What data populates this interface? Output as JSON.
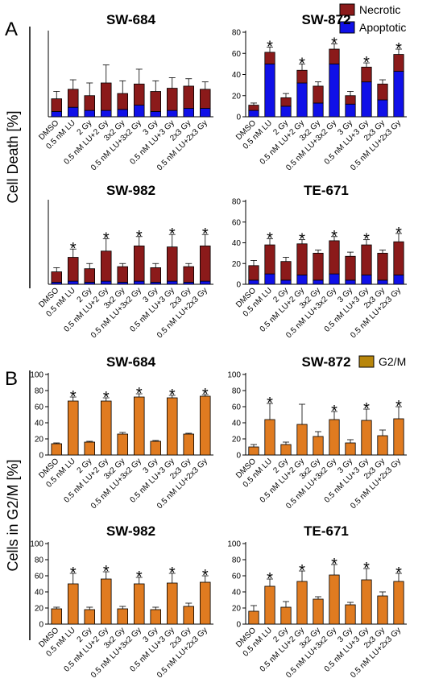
{
  "panels": [
    {
      "letter": "A",
      "ylabel": "Cell Death [%]",
      "legend": [
        {
          "label": "Necrotic",
          "color": "#8b1a1a"
        },
        {
          "label": "Apoptotic",
          "color": "#1010e8"
        }
      ]
    },
    {
      "letter": "B",
      "ylabel": "Cells in G2/M [%]",
      "legend": [
        {
          "label": "G2/M",
          "color": "#e07b20"
        }
      ]
    }
  ],
  "chart_data": [
    {
      "type": "bar",
      "stacked": true,
      "panel": "A",
      "title": "SW-684",
      "categories": [
        "DMSO",
        "0.5 nM LU",
        "2 Gy",
        "0.5 nM LU+2 Gy",
        "3x2 Gy",
        "0.5 nM LU+3x2 Gy",
        "3 Gy",
        "0.5 nM LU+3 Gy",
        "2x3 Gy",
        "0.5 nM LU+2x3 Gy"
      ],
      "series": [
        {
          "name": "Apoptotic",
          "values": [
            5,
            9,
            6,
            6,
            7,
            11,
            5,
            6,
            8,
            8
          ]
        },
        {
          "name": "Necrotic",
          "values": [
            12,
            17,
            14,
            26,
            15,
            20,
            19,
            21,
            21,
            18
          ]
        }
      ],
      "errors": [
        7,
        9,
        12,
        17,
        12,
        14,
        10,
        10,
        7,
        7
      ],
      "significant": [
        false,
        false,
        false,
        false,
        false,
        false,
        false,
        false,
        false,
        false
      ],
      "ylim": [
        0,
        80
      ],
      "yticks": [],
      "grid": false
    },
    {
      "type": "bar",
      "stacked": true,
      "panel": "A",
      "title": "SW-872",
      "categories": [
        "DMSO",
        "0.5 nM LU",
        "2 Gy",
        "0.5 nM LU+2 Gy",
        "3x2 Gy",
        "0.5 nM LU+3x2 Gy",
        "3 Gy",
        "0.5 nM LU+3 Gy",
        "2x3 Gy",
        "0.5 nM LU+2x3 Gy"
      ],
      "series": [
        {
          "name": "Apoptotic",
          "values": [
            6,
            50,
            10,
            32,
            13,
            50,
            12,
            33,
            16,
            43
          ]
        },
        {
          "name": "Necrotic",
          "values": [
            5,
            11,
            8,
            12,
            16,
            14,
            8,
            14,
            15,
            16
          ]
        }
      ],
      "errors": [
        2,
        5,
        4,
        6,
        4,
        5,
        4,
        4,
        4,
        5
      ],
      "significant": [
        false,
        true,
        false,
        true,
        false,
        true,
        false,
        true,
        false,
        true
      ],
      "ylim": [
        0,
        80
      ],
      "yticks": [
        0,
        20,
        40,
        60,
        80
      ],
      "grid": false
    },
    {
      "type": "bar",
      "stacked": true,
      "panel": "A",
      "title": "SW-982",
      "categories": [
        "DMSO",
        "0.5 nM LU",
        "2 Gy",
        "0.5 nM LU+2 Gy",
        "3x2 Gy",
        "0.5 nM LU+3x2 Gy",
        "3 Gy",
        "0.5 nM LU+3 Gy",
        "2x3 Gy",
        "0.5 nM LU+2x3 Gy"
      ],
      "series": [
        {
          "name": "Apoptotic",
          "values": [
            2,
            3,
            2,
            3,
            2,
            3,
            2,
            3,
            2,
            3
          ]
        },
        {
          "name": "Necrotic",
          "values": [
            10,
            23,
            13,
            29,
            15,
            34,
            14,
            33,
            15,
            34
          ]
        }
      ],
      "errors": [
        4,
        8,
        5,
        12,
        3,
        9,
        4,
        12,
        3,
        11
      ],
      "significant": [
        false,
        true,
        false,
        true,
        false,
        true,
        false,
        true,
        false,
        true
      ],
      "ylim": [
        0,
        80
      ],
      "yticks": [],
      "grid": false
    },
    {
      "type": "bar",
      "stacked": true,
      "panel": "A",
      "title": "TE-671",
      "categories": [
        "DMSO",
        "0.5 nM LU",
        "2 Gy",
        "0.5 nM LU+2 Gy",
        "3x2 Gy",
        "0.5 nM LU+3x2 Gy",
        "3 Gy",
        "0.5 nM LU+3 Gy",
        "2x3 Gy",
        "0.5 nM LU+2x3 Gy"
      ],
      "series": [
        {
          "name": "Apoptotic",
          "values": [
            4,
            10,
            4,
            9,
            4,
            10,
            4,
            9,
            4,
            9
          ]
        },
        {
          "name": "Necrotic",
          "values": [
            14,
            28,
            18,
            30,
            26,
            32,
            23,
            29,
            26,
            32
          ]
        }
      ],
      "errors": [
        5,
        6,
        4,
        4,
        3,
        4,
        4,
        5,
        3,
        8
      ],
      "significant": [
        false,
        true,
        false,
        true,
        false,
        true,
        false,
        true,
        false,
        true
      ],
      "ylim": [
        0,
        80
      ],
      "yticks": [
        0,
        20,
        40,
        60,
        80
      ],
      "grid": false
    },
    {
      "type": "bar",
      "stacked": false,
      "panel": "B",
      "title": "SW-684",
      "categories": [
        "DMSO",
        "0.5 nM LU",
        "2 Gy",
        "0.5 nM LU+2 Gy",
        "3x2 Gy",
        "0.5 nM LU+3x2 Gy",
        "3 Gy",
        "0.5 nM LU+3 Gy",
        "2x3 Gy",
        "0.5 nM LU+2x3 Gy"
      ],
      "series": [
        {
          "name": "G2/M",
          "values": [
            14,
            67,
            16,
            67,
            26,
            72,
            17,
            71,
            26,
            73
          ]
        }
      ],
      "errors": [
        1,
        5,
        1,
        4,
        2,
        4,
        1,
        3,
        1,
        2
      ],
      "significant": [
        false,
        true,
        false,
        true,
        false,
        true,
        false,
        true,
        false,
        true
      ],
      "ylim": [
        0,
        100
      ],
      "yticks": [
        0,
        20,
        40,
        60,
        80,
        100
      ],
      "grid": false
    },
    {
      "type": "bar",
      "stacked": false,
      "panel": "B",
      "title": "SW-872",
      "categories": [
        "DMSO",
        "0.5 nM LU",
        "2 Gy",
        "0.5 nM LU+2 Gy",
        "3x2 Gy",
        "0.5 nM LU+3x2 Gy",
        "3 Gy",
        "0.5 nM LU+3 Gy",
        "2x3 Gy",
        "0.5 nM LU+2x3 Gy"
      ],
      "series": [
        {
          "name": "G2/M",
          "values": [
            10,
            44,
            13,
            38,
            23,
            44,
            15,
            43,
            24,
            45
          ]
        }
      ],
      "errors": [
        3,
        20,
        3,
        25,
        6,
        10,
        4,
        14,
        7,
        15
      ],
      "significant": [
        false,
        true,
        false,
        false,
        false,
        true,
        false,
        true,
        false,
        true
      ],
      "ylim": [
        0,
        100
      ],
      "yticks": [
        0,
        20,
        40,
        60,
        80,
        100
      ],
      "grid": false
    },
    {
      "type": "bar",
      "stacked": false,
      "panel": "B",
      "title": "SW-982",
      "categories": [
        "DMSO",
        "0.5 nM LU",
        "2 Gy",
        "0.5 nM LU+2 Gy",
        "3x2 Gy",
        "0.5 nM LU+3x2 Gy",
        "3 Gy",
        "0.5 nM LU+3 Gy",
        "2x3 Gy",
        "0.5 nM LU+2x3 Gy"
      ],
      "series": [
        {
          "name": "G2/M",
          "values": [
            19,
            50,
            18,
            56,
            19,
            50,
            18,
            51,
            22,
            52
          ]
        }
      ],
      "errors": [
        2,
        13,
        3,
        9,
        3,
        8,
        3,
        12,
        4,
        8
      ],
      "significant": [
        false,
        true,
        false,
        true,
        false,
        true,
        false,
        true,
        false,
        true
      ],
      "ylim": [
        0,
        100
      ],
      "yticks": [
        0,
        20,
        40,
        60,
        80,
        100
      ],
      "grid": false
    },
    {
      "type": "bar",
      "stacked": false,
      "panel": "B",
      "title": "TE-671",
      "categories": [
        "DMSO",
        "0.5 nM LU",
        "2 Gy",
        "0.5 nM LU+2 Gy",
        "3x2 Gy",
        "0.5 nM LU+3x2 Gy",
        "3 Gy",
        "0.5 nM LU+3 Gy",
        "2x3 Gy",
        "0.5 nM LU+2x3 Gy"
      ],
      "series": [
        {
          "name": "G2/M",
          "values": [
            16,
            47,
            21,
            53,
            31,
            61,
            24,
            55,
            35,
            53
          ]
        }
      ],
      "errors": [
        7,
        9,
        7,
        13,
        3,
        13,
        3,
        14,
        5,
        10
      ],
      "significant": [
        false,
        true,
        false,
        true,
        false,
        true,
        false,
        true,
        false,
        true
      ],
      "ylim": [
        0,
        100
      ],
      "yticks": [
        0,
        20,
        40,
        60,
        80,
        100
      ],
      "grid": false
    }
  ]
}
